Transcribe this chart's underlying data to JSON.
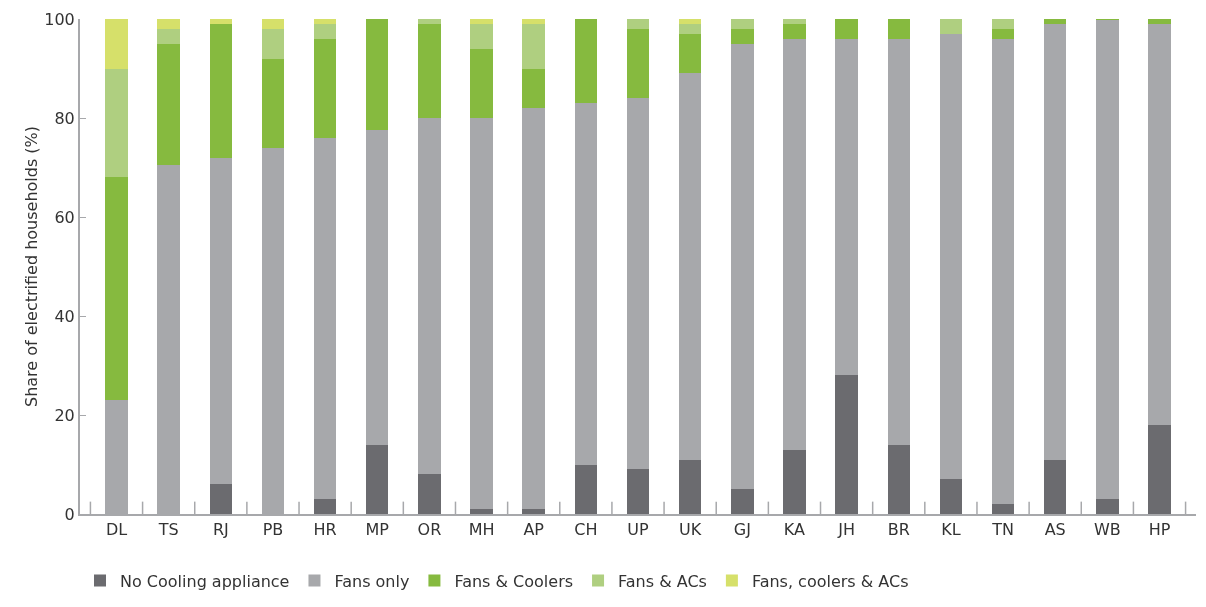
{
  "chart_data": {
    "type": "bar",
    "stacked": true,
    "ylabel": "Share of electrified households (%)",
    "categories": [
      "DL",
      "TS",
      "RJ",
      "PB",
      "HR",
      "MP",
      "OR",
      "MH",
      "AP",
      "CH",
      "UP",
      "UK",
      "GJ",
      "KA",
      "JH",
      "BR",
      "KL",
      "TN",
      "AS",
      "WB",
      "HP"
    ],
    "series": [
      {
        "name": "No Cooling appliance",
        "color": "#6b6b6f",
        "values": [
          0,
          0,
          6,
          0,
          3,
          14,
          8,
          1,
          1,
          10,
          9,
          11,
          5,
          13,
          28,
          14,
          7,
          2,
          11,
          3,
          18
        ]
      },
      {
        "name": "Fans only",
        "color": "#a7a8ab",
        "values": [
          23,
          70.5,
          66,
          74,
          73,
          63.5,
          72,
          79,
          81,
          73,
          75,
          78,
          90,
          83,
          68,
          82,
          90,
          94,
          88,
          96.8,
          81
        ]
      },
      {
        "name": "Fans & Coolers",
        "color": "#86ba3f",
        "values": [
          45,
          24.5,
          27,
          18,
          20,
          22.5,
          19,
          14,
          8,
          17,
          14,
          8,
          3,
          3,
          4,
          4,
          0,
          2,
          1,
          0.2,
          1
        ]
      },
      {
        "name": "Fans & ACs",
        "color": "#afcf80",
        "values": [
          22,
          3,
          0,
          6,
          3,
          0,
          1,
          5,
          9,
          0,
          2,
          2,
          2,
          1,
          0,
          0,
          3,
          2,
          0,
          0,
          0
        ]
      },
      {
        "name": "Fans, coolers & ACs",
        "color": "#d6e06a",
        "values": [
          10,
          2,
          1,
          2,
          1,
          0,
          0,
          1,
          1,
          0,
          0,
          1,
          0,
          0,
          0,
          0,
          0,
          0,
          0,
          0,
          0
        ]
      }
    ],
    "ylim": [
      0,
      100
    ],
    "yticks": [
      0,
      20,
      40,
      60,
      80,
      100
    ],
    "grid": false,
    "legend": "bottom"
  }
}
